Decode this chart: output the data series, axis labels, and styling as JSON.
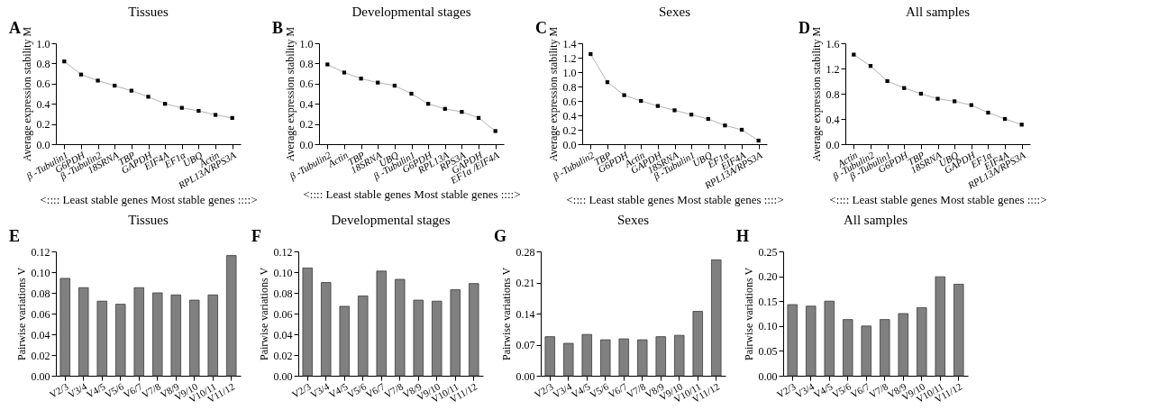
{
  "chart_data": [
    {
      "type": "line",
      "title": "Tissues",
      "annotations": [
        "A"
      ],
      "xlabel": "<:::: Least stable genes    Most stable genes ::::>",
      "ylabel": "Average expression stability M",
      "marker": "square",
      "grid": false,
      "categories": [
        "β -Tubulin1",
        "G6PDH",
        "β -Tubulin2",
        "18SRNA",
        "TBP",
        "GAPDH",
        "EIF4A",
        "EF1α",
        "UBQ",
        "Actin",
        "RPL13A/RPS3A"
      ],
      "series": [
        {
          "color": "#b3b3b3",
          "values": [
            0.82,
            0.69,
            0.63,
            0.58,
            0.53,
            0.47,
            0.4,
            0.36,
            0.33,
            0.29,
            0.26
          ]
        }
      ],
      "ylim": [
        0,
        1
      ],
      "yticks": [
        {
          "value": 0,
          "label": "0.0"
        },
        {
          "value": 0.2,
          "label": "0.2"
        },
        {
          "value": 0.4,
          "label": "0.4"
        },
        {
          "value": 0.6,
          "label": "0.6"
        },
        {
          "value": 0.8,
          "label": "0.8"
        },
        {
          "value": 1,
          "label": "1.0"
        }
      ]
    },
    {
      "type": "line",
      "title": "Developmental stages",
      "annotations": [
        "B"
      ],
      "xlabel": "<:::: Least stable genes    Most stable genes ::::>",
      "ylabel": "Average expression stability M",
      "marker": "square",
      "grid": false,
      "categories": [
        "β -Tubulin2",
        "Actin",
        "TBP",
        "18SRNA",
        "UBQ",
        "β -Tubulin1",
        "G6PDH",
        "RPL13A",
        "RPS3A",
        "GAPDH",
        "EF1α /EIF4A"
      ],
      "series": [
        {
          "color": "#b3b3b3",
          "values": [
            0.79,
            0.71,
            0.65,
            0.61,
            0.58,
            0.5,
            0.4,
            0.35,
            0.32,
            0.26,
            0.13
          ]
        }
      ],
      "ylim": [
        0,
        1
      ],
      "yticks": [
        {
          "value": 0,
          "label": "0.0"
        },
        {
          "value": 0.2,
          "label": "0.2"
        },
        {
          "value": 0.4,
          "label": "0.4"
        },
        {
          "value": 0.6,
          "label": "0.6"
        },
        {
          "value": 0.8,
          "label": "0.8"
        },
        {
          "value": 1,
          "label": "1.0"
        }
      ]
    },
    {
      "type": "line",
      "title": "Sexes",
      "annotations": [
        "C"
      ],
      "xlabel": "<:::: Least stable genes    Most stable genes ::::>",
      "ylabel": "Average expression stability M",
      "marker": "square",
      "grid": false,
      "categories": [
        "β -Tubulin2",
        "TBP",
        "G6PDH",
        "Actin",
        "GAPDH",
        "18SRNA",
        "β -Tubulin1",
        "UBQ",
        "EF1α",
        "EIF4A",
        "RPL13A/RPS3A"
      ],
      "series": [
        {
          "color": "#b3b3b3",
          "values": [
            1.25,
            0.86,
            0.68,
            0.6,
            0.53,
            0.47,
            0.41,
            0.35,
            0.26,
            0.2,
            0.05
          ]
        }
      ],
      "ylim": [
        0,
        1.4
      ],
      "yticks": [
        {
          "value": 0,
          "label": "0.0"
        },
        {
          "value": 0.2,
          "label": "0.2"
        },
        {
          "value": 0.4,
          "label": "0.4"
        },
        {
          "value": 0.6,
          "label": "0.6"
        },
        {
          "value": 0.8,
          "label": "0.8"
        },
        {
          "value": 1,
          "label": "1.0"
        },
        {
          "value": 1.2,
          "label": "1.2"
        },
        {
          "value": 1.4,
          "label": "1.4"
        }
      ]
    },
    {
      "type": "line",
      "title": "All samples",
      "annotations": [
        "D"
      ],
      "xlabel": "<:::: Least stable genes    Most stable genes ::::>",
      "ylabel": "Average expression stability M",
      "marker": "square",
      "grid": false,
      "categories": [
        "Actin",
        "β -Tubulin2",
        "β -Tubulin1",
        "G6PDH",
        "TBP",
        "18SRNA",
        "UBQ",
        "GAPDH",
        "EF1α",
        "EIF4A",
        "RPL13A/RPS3A"
      ],
      "series": [
        {
          "color": "#b3b3b3",
          "values": [
            1.42,
            1.24,
            1.0,
            0.89,
            0.8,
            0.72,
            0.68,
            0.62,
            0.5,
            0.4,
            0.31
          ]
        }
      ],
      "ylim": [
        0,
        1.6
      ],
      "yticks": [
        {
          "value": 0,
          "label": "0.0"
        },
        {
          "value": 0.4,
          "label": "0.4"
        },
        {
          "value": 0.8,
          "label": "0.8"
        },
        {
          "value": 1.2,
          "label": "1.2"
        },
        {
          "value": 1.6,
          "label": "1.6"
        }
      ]
    },
    {
      "type": "bar",
      "title": "Tissues",
      "annotations": [
        "E"
      ],
      "ylabel": "Pairwise variations V",
      "grid": false,
      "categories": [
        "V2/3",
        "V3/4",
        "V4/5",
        "V5/6",
        "V6/7",
        "V7/8",
        "V8/9",
        "V9/10",
        "V10/11",
        "V11/12"
      ],
      "series": [
        {
          "color": "#808080",
          "values": [
            0.094,
            0.085,
            0.072,
            0.069,
            0.085,
            0.08,
            0.078,
            0.073,
            0.078,
            0.116
          ]
        }
      ],
      "ylim": [
        0,
        0.12
      ],
      "yticks": [
        {
          "value": 0,
          "label": "0.00"
        },
        {
          "value": 0.02,
          "label": "0.02"
        },
        {
          "value": 0.04,
          "label": "0.04"
        },
        {
          "value": 0.06,
          "label": "0.06"
        },
        {
          "value": 0.08,
          "label": "0.08"
        },
        {
          "value": 0.1,
          "label": "0.10"
        },
        {
          "value": 0.12,
          "label": "0.12"
        }
      ]
    },
    {
      "type": "bar",
      "title": "Developmental stages",
      "annotations": [
        "F"
      ],
      "ylabel": "Pairwise variations V",
      "grid": false,
      "categories": [
        "V2/3",
        "V3/4",
        "V4/5",
        "V5/6",
        "V6/7",
        "V7/8",
        "V8/9",
        "V9/10",
        "V10/11",
        "V11/12"
      ],
      "series": [
        {
          "color": "#808080",
          "values": [
            0.104,
            0.09,
            0.067,
            0.077,
            0.101,
            0.093,
            0.073,
            0.072,
            0.083,
            0.089
          ]
        }
      ],
      "ylim": [
        0,
        0.12
      ],
      "yticks": [
        {
          "value": 0,
          "label": "0.00"
        },
        {
          "value": 0.02,
          "label": "0.02"
        },
        {
          "value": 0.04,
          "label": "0.04"
        },
        {
          "value": 0.06,
          "label": "0.06"
        },
        {
          "value": 0.08,
          "label": "0.08"
        },
        {
          "value": 0.1,
          "label": "0.10"
        },
        {
          "value": 0.12,
          "label": "0.12"
        }
      ]
    },
    {
      "type": "bar",
      "title": "Sexes",
      "annotations": [
        "G"
      ],
      "ylabel": "Pairwise variations V",
      "grid": false,
      "categories": [
        "V2/3",
        "V3/4",
        "V4/5",
        "V5/6",
        "V6/7",
        "V7/8",
        "V8/9",
        "V9/10",
        "V10/11",
        "V11/12"
      ],
      "series": [
        {
          "color": "#808080",
          "values": [
            0.088,
            0.073,
            0.093,
            0.081,
            0.083,
            0.081,
            0.088,
            0.091,
            0.145,
            0.261
          ]
        }
      ],
      "ylim": [
        0,
        0.28
      ],
      "yticks": [
        {
          "value": 0,
          "label": "0.00"
        },
        {
          "value": 0.07,
          "label": "0.07"
        },
        {
          "value": 0.14,
          "label": "0.14"
        },
        {
          "value": 0.21,
          "label": "0.21"
        },
        {
          "value": 0.28,
          "label": "0.28"
        }
      ]
    },
    {
      "type": "bar",
      "title": "All samples",
      "annotations": [
        "H"
      ],
      "ylabel": "Pairwise variations V",
      "grid": false,
      "categories": [
        "V2/3",
        "V3/4",
        "V4/5",
        "V5/6",
        "V6/7",
        "V7/8",
        "V8/9",
        "V9/10",
        "V10/11",
        "V11/12"
      ],
      "series": [
        {
          "color": "#808080",
          "values": [
            0.143,
            0.14,
            0.15,
            0.113,
            0.1,
            0.113,
            0.125,
            0.137,
            0.199,
            0.184
          ]
        }
      ],
      "ylim": [
        0,
        0.25
      ],
      "yticks": [
        {
          "value": 0,
          "label": "0.00"
        },
        {
          "value": 0.05,
          "label": "0.05"
        },
        {
          "value": 0.1,
          "label": "0.10"
        },
        {
          "value": 0.15,
          "label": "0.15"
        },
        {
          "value": 0.2,
          "label": "0.20"
        },
        {
          "value": 0.25,
          "label": "0.25"
        }
      ]
    }
  ]
}
